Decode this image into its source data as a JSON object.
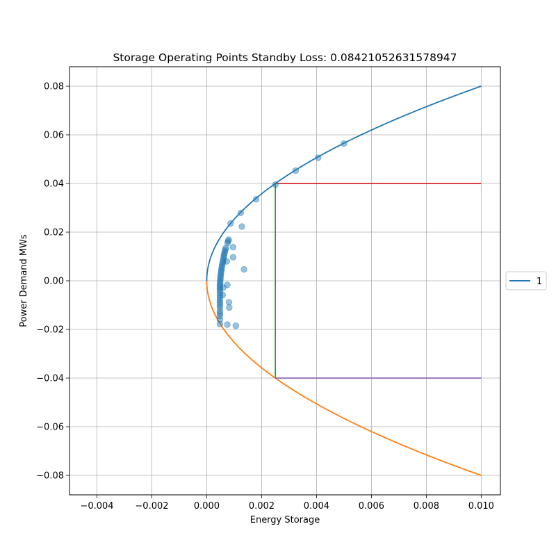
{
  "chart_data": {
    "type": "scatter",
    "title": "Storage Operating Points Standby Loss: 0.08421052631578947",
    "xlabel": "Energy Storage",
    "ylabel": "Power Demand MWs",
    "xlim": [
      -0.005,
      0.0107
    ],
    "ylim": [
      -0.088,
      0.088
    ],
    "x_ticks": [
      -0.004,
      -0.002,
      0.0,
      0.002,
      0.004,
      0.006,
      0.008,
      0.01
    ],
    "x_tick_labels": [
      "−0.004",
      "−0.002",
      "0.000",
      "0.002",
      "0.004",
      "0.006",
      "0.008",
      "0.010"
    ],
    "y_ticks": [
      -0.08,
      -0.06,
      -0.04,
      -0.02,
      0.0,
      0.02,
      0.04,
      0.06,
      0.08
    ],
    "y_tick_labels": [
      "−0.08",
      "−0.06",
      "−0.04",
      "−0.02",
      "0.00",
      "0.02",
      "0.04",
      "0.06",
      "0.08"
    ],
    "grid": true,
    "legend": {
      "placement": "outside-right",
      "entries": [
        {
          "label": "1",
          "color": "#1f77b4"
        }
      ]
    },
    "colors": {
      "upper_curve": "#1f77b4",
      "lower_curve": "#ff7f0e",
      "charge_limit": "#d62728",
      "energy_limit": "#2ca02c",
      "discharge_limit": "#9467bd",
      "points": "#1f77b4"
    },
    "curves": {
      "upper": {
        "equation": "y = 0.8 * sqrt(x)",
        "x_range": [
          0,
          0.01
        ]
      },
      "lower": {
        "equation": "y = -0.8 * sqrt(x)",
        "x_range": [
          0,
          0.01
        ]
      }
    },
    "limit_lines": [
      {
        "key": "charge_limit",
        "x": [
          0.0025,
          0.01
        ],
        "y": [
          0.04,
          0.04
        ]
      },
      {
        "key": "energy_limit",
        "x": [
          0.0025,
          0.0025
        ],
        "y": [
          -0.04,
          0.04
        ]
      },
      {
        "key": "discharge_limit",
        "x": [
          0.0025,
          0.01
        ],
        "y": [
          -0.04,
          -0.04
        ]
      }
    ],
    "points": [
      [
        0.0025,
        0.0395
      ],
      [
        0.0018,
        0.0335
      ],
      [
        0.00124,
        0.0279
      ],
      [
        0.00087,
        0.0236
      ],
      [
        0.00128,
        0.0223
      ],
      [
        0.00324,
        0.0453
      ],
      [
        0.00406,
        0.0506
      ],
      [
        0.005,
        0.0564
      ],
      [
        0.0008,
        0.0169
      ],
      [
        0.00078,
        0.0163
      ],
      [
        0.00076,
        0.0156
      ],
      [
        0.0007,
        0.0135
      ],
      [
        0.00068,
        0.0128
      ],
      [
        0.00066,
        0.012
      ],
      [
        0.00064,
        0.0112
      ],
      [
        0.00063,
        0.0104
      ],
      [
        0.00062,
        0.0096
      ],
      [
        0.0006,
        0.0088
      ],
      [
        0.00059,
        0.008
      ],
      [
        0.00058,
        0.0072
      ],
      [
        0.00056,
        0.0064
      ],
      [
        0.00055,
        0.0056
      ],
      [
        0.00054,
        0.0048
      ],
      [
        0.00053,
        0.004
      ],
      [
        0.00052,
        0.0032
      ],
      [
        0.00051,
        0.0024
      ],
      [
        0.0005,
        0.0016
      ],
      [
        0.0005,
        0.0008
      ],
      [
        0.00049,
        0.0
      ],
      [
        0.00049,
        -0.0008
      ],
      [
        0.00048,
        -0.0016
      ],
      [
        0.00048,
        -0.0024
      ],
      [
        0.00048,
        -0.0032
      ],
      [
        0.00048,
        -0.004
      ],
      [
        0.00048,
        -0.005
      ],
      [
        0.00048,
        -0.006
      ],
      [
        0.00048,
        -0.007
      ],
      [
        0.00048,
        -0.008
      ],
      [
        0.00048,
        -0.009
      ],
      [
        0.00048,
        -0.01
      ],
      [
        0.00048,
        -0.011
      ],
      [
        0.00048,
        -0.0125
      ],
      [
        0.00048,
        -0.0135
      ],
      [
        0.00048,
        -0.0145
      ],
      [
        0.00048,
        -0.016
      ],
      [
        0.00048,
        -0.0178
      ],
      [
        0.00096,
        0.0138
      ],
      [
        0.00096,
        0.0097
      ],
      [
        0.00136,
        0.0047
      ],
      [
        0.00073,
        0.008
      ],
      [
        0.00075,
        -0.0017
      ],
      [
        0.0006,
        -0.0028
      ],
      [
        0.00058,
        -0.0058
      ],
      [
        0.00081,
        -0.0088
      ],
      [
        0.00082,
        -0.011
      ],
      [
        0.00075,
        -0.018
      ],
      [
        0.00106,
        -0.0185
      ]
    ]
  }
}
